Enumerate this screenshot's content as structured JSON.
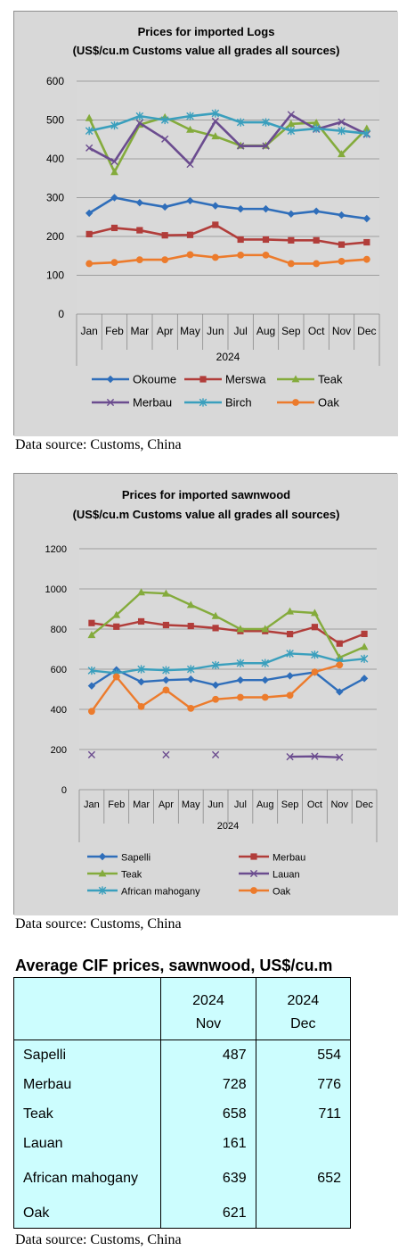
{
  "charts": [
    {
      "chart_data": {
        "type": "line",
        "title": "Prices for imported Logs",
        "subtitle": "(US$/cu.m Customs value all grades all sources)",
        "xlabel": "2024",
        "ylabel": "",
        "ylim": [
          0,
          600
        ],
        "yticks": [
          0,
          100,
          200,
          300,
          400,
          500,
          600
        ],
        "grid": true,
        "legend_position": "bottom",
        "categories": [
          "Jan",
          "Feb",
          "Mar",
          "Apr",
          "May",
          "Jun",
          "Jul",
          "Aug",
          "Sep",
          "Oct",
          "Nov",
          "Dec"
        ],
        "series": [
          {
            "name": "Okoume",
            "color": "#2f6eba",
            "marker": "diamond",
            "values": [
              260,
              300,
              287,
              276,
              292,
              279,
              271,
              271,
              258,
              265,
              255,
              246
            ]
          },
          {
            "name": "Merswa",
            "color": "#b13d3a",
            "marker": "square",
            "values": [
              206,
              222,
              216,
              203,
              204,
              230,
              192,
              192,
              190,
              190,
              179,
              185
            ]
          },
          {
            "name": "Teak",
            "color": "#84ab3c",
            "marker": "triangle",
            "values": [
              505,
              366,
              488,
              507,
              475,
              458,
              434,
              434,
              490,
              493,
              412,
              478
            ]
          },
          {
            "name": "Merbau",
            "color": "#6b4c8f",
            "marker": "x",
            "values": [
              428,
              393,
              492,
              451,
              386,
              497,
              433,
              433,
              514,
              476,
              495,
              463
            ]
          },
          {
            "name": "Birch",
            "color": "#3a9fbd",
            "marker": "star",
            "values": [
              472,
              486,
              510,
              500,
              510,
              517,
              494,
              494,
              472,
              478,
              472,
              465
            ]
          },
          {
            "name": "Oak",
            "color": "#ec7b2c",
            "marker": "circle",
            "values": [
              130,
              133,
              140,
              140,
              153,
              146,
              152,
              152,
              130,
              130,
              136,
              141
            ]
          }
        ]
      },
      "source": "Data source: Customs, China"
    },
    {
      "chart_data": {
        "type": "line",
        "title": "Prices for imported sawnwood",
        "subtitle": "(US$/cu.m Customs value all grades all sources)",
        "xlabel": "2024",
        "ylabel": "",
        "ylim": [
          0,
          1200
        ],
        "yticks": [
          0,
          200,
          400,
          600,
          800,
          1000,
          1200
        ],
        "grid": true,
        "legend_position": "bottom",
        "categories": [
          "Jan",
          "Feb",
          "Mar",
          "Apr",
          "May",
          "Jun",
          "Jul",
          "Aug",
          "Sep",
          "Oct",
          "Nov",
          "Dec"
        ],
        "series": [
          {
            "name": "Sapelli",
            "color": "#2f6eba",
            "marker": "diamond",
            "values": [
              517,
              597,
              537,
              546,
              550,
              521,
              546,
              546,
              567,
              585,
              487,
              554
            ]
          },
          {
            "name": "Merbau",
            "color": "#b13d3a",
            "marker": "square",
            "values": [
              830,
              812,
              838,
              820,
              815,
              805,
              790,
              790,
              775,
              810,
              728,
              776
            ]
          },
          {
            "name": "Teak",
            "color": "#84ab3c",
            "marker": "triangle",
            "values": [
              770,
              870,
              983,
              977,
              920,
              865,
              800,
              800,
              888,
              880,
              658,
              711
            ]
          },
          {
            "name": "Lauan",
            "color": "#6b4c8f",
            "marker": "x",
            "values": [
              174,
              null,
              null,
              174,
              null,
              174,
              null,
              null,
              164,
              166,
              161,
              null
            ]
          },
          {
            "name": "African mahogany",
            "color": "#3a9fbd",
            "marker": "star",
            "values": [
              593,
              580,
              600,
              595,
              600,
              620,
              630,
              630,
              678,
              672,
              639,
              652
            ]
          },
          {
            "name": "Oak",
            "color": "#ec7b2c",
            "marker": "circle",
            "values": [
              390,
              562,
              414,
              496,
              405,
              450,
              460,
              460,
              470,
              586,
              621,
              null
            ]
          }
        ]
      },
      "source": "Data source: Customs, China"
    }
  ],
  "table": {
    "title": "Average CIF prices, sawnwood, US$/cu.m",
    "header_year": [
      "2024",
      "2024"
    ],
    "header_month": [
      "Nov",
      "Dec"
    ],
    "rows": [
      {
        "label": "Sapelli",
        "nov": "487",
        "dec": "554"
      },
      {
        "label": "Merbau",
        "nov": "728",
        "dec": "776"
      },
      {
        "label": "Teak",
        "nov": "658",
        "dec": "711"
      },
      {
        "label": "Lauan",
        "nov": "161",
        "dec": ""
      },
      {
        "label": "African mahogany",
        "nov": "639",
        "dec": "652"
      },
      {
        "label": "Oak",
        "nov": "621",
        "dec": ""
      }
    ],
    "source": "Data source: Customs, China"
  }
}
